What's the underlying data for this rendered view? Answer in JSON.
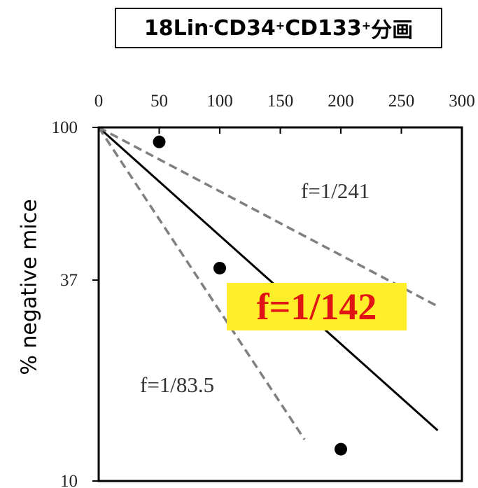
{
  "chart_data": {
    "type": "scatter",
    "title": {
      "base1": "18Lin",
      "sup1": "-",
      "base2": "CD34",
      "sup2": "+",
      "base3": "CD133",
      "sup3": "+",
      "base4": "分画"
    },
    "xlabel": "",
    "ylabel": "% negative mice",
    "x_axis_position": "top",
    "xlim": [
      0,
      300
    ],
    "ylim": [
      10,
      100
    ],
    "yscale": "log",
    "x_ticks": [
      0,
      50,
      100,
      150,
      200,
      250,
      300
    ],
    "y_ticks": [
      100,
      37,
      10
    ],
    "grid": false,
    "points": [
      {
        "x": 50,
        "y": 91
      },
      {
        "x": 100,
        "y": 40
      },
      {
        "x": 200,
        "y": 12.3
      }
    ],
    "fit_lines": [
      {
        "label": "f=1/142",
        "style": "solid",
        "color": "#000000",
        "x": [
          0,
          280
        ],
        "y": [
          100,
          13.9
        ]
      },
      {
        "label": "f=1/241",
        "style": "dashed",
        "color": "#808080",
        "x": [
          0,
          280
        ],
        "y": [
          100,
          31.2
        ]
      },
      {
        "label": "f=1/83.5",
        "style": "dashed",
        "color": "#808080",
        "x": [
          0,
          170
        ],
        "y": [
          100,
          13.1
        ]
      }
    ],
    "annotations": {
      "main": "f=1/142",
      "upper": "f=1/241",
      "lower": "f=1/83.5"
    },
    "colors": {
      "highlight_bg": "#ffee2a",
      "highlight_text": "#e01414"
    }
  }
}
